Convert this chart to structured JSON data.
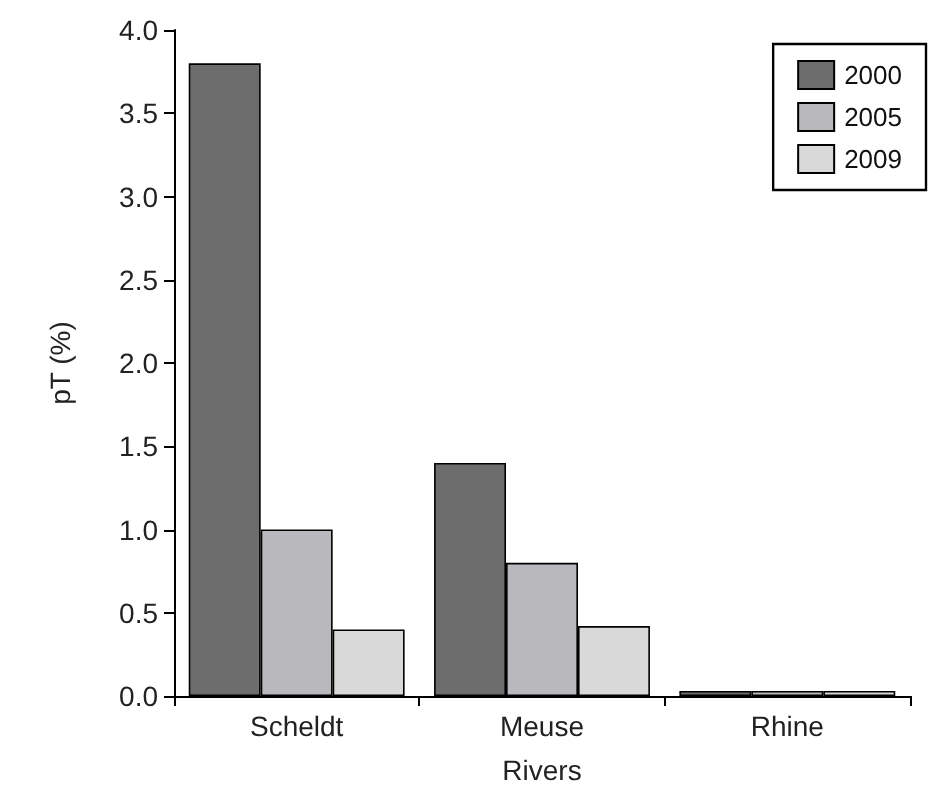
{
  "chart_data": {
    "type": "bar",
    "xlabel": "Rivers",
    "ylabel": "pT (%)",
    "categories": [
      "Scheldt",
      "Meuse",
      "Rhine"
    ],
    "series": [
      {
        "name": "2000",
        "color": "#6d6d6d",
        "values": [
          3.8,
          1.4,
          0.03
        ]
      },
      {
        "name": "2005",
        "color": "#b9b9bd",
        "values": [
          1.0,
          0.8,
          0.03
        ]
      },
      {
        "name": "2009",
        "color": "#d9d9d9",
        "values": [
          0.4,
          0.42,
          0.03
        ]
      }
    ],
    "ylim": [
      0,
      4
    ],
    "yticks": [
      {
        "value": 0,
        "label": "0.0"
      },
      {
        "value": 0.5,
        "label": "0.5"
      },
      {
        "value": 1,
        "label": "1.0"
      },
      {
        "value": 1.5,
        "label": "1.5"
      },
      {
        "value": 2,
        "label": "2.0"
      },
      {
        "value": 2.5,
        "label": "2.5"
      },
      {
        "value": 3,
        "label": "3.0"
      },
      {
        "value": 3.5,
        "label": "3.5"
      },
      {
        "value": 4,
        "label": "4.0"
      }
    ],
    "grid": false,
    "legend": "top right"
  }
}
